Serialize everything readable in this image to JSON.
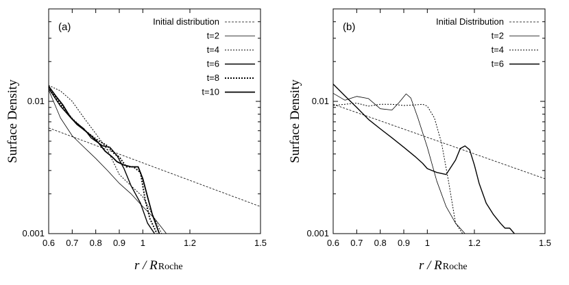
{
  "chart_data": [
    {
      "type": "line",
      "panel_label": "(a)",
      "xlabel": "r / R",
      "xlabel_subscript": "Roche",
      "ylabel": "Surface Density",
      "xscale": "linear",
      "yscale": "log",
      "xlim": [
        0.6,
        1.5
      ],
      "ylim": [
        0.001,
        0.05
      ],
      "x_ticks": [
        "0.6",
        "0.7",
        "0.8",
        "0.9",
        "1",
        "1.2",
        "1.5"
      ],
      "x_tick_values": [
        0.6,
        0.7,
        0.8,
        0.9,
        1.0,
        1.2,
        1.5
      ],
      "y_ticks": [
        "0.001",
        "0.01"
      ],
      "y_tick_values": [
        0.001,
        0.01
      ],
      "legend_position": "top-right",
      "series": [
        {
          "name": "Initial distribution",
          "style": "dashed-thin",
          "x": [
            0.6,
            1.5
          ],
          "y": [
            0.0063,
            0.0016
          ]
        },
        {
          "name": "t=2",
          "style": "solid-thin",
          "x": [
            0.6,
            0.65,
            0.7,
            0.75,
            0.8,
            0.85,
            0.9,
            0.95,
            1.0,
            1.05,
            1.1
          ],
          "y": [
            0.0122,
            0.0075,
            0.0055,
            0.0045,
            0.0037,
            0.003,
            0.0024,
            0.002,
            0.0016,
            0.0013,
            0.001
          ]
        },
        {
          "name": "t=4",
          "style": "dotted-thin",
          "x": [
            0.6,
            0.65,
            0.7,
            0.75,
            0.8,
            0.85,
            0.9,
            0.95,
            1.0,
            1.05,
            1.08
          ],
          "y": [
            0.0132,
            0.012,
            0.01,
            0.0075,
            0.0057,
            0.0043,
            0.0028,
            0.0023,
            0.0019,
            0.0013,
            0.001
          ]
        },
        {
          "name": "t=6",
          "style": "solid-medium",
          "x": [
            0.6,
            0.65,
            0.7,
            0.75,
            0.78,
            0.8,
            0.83,
            0.86,
            0.89,
            0.92,
            0.95,
            0.99,
            1.02,
            1.05
          ],
          "y": [
            0.0125,
            0.0092,
            0.0073,
            0.0062,
            0.0053,
            0.005,
            0.0046,
            0.0045,
            0.0039,
            0.0031,
            0.0023,
            0.0017,
            0.0012,
            0.001
          ]
        },
        {
          "name": "t=8",
          "style": "dotted-thick",
          "x": [
            0.6,
            0.65,
            0.7,
            0.75,
            0.8,
            0.85,
            0.88,
            0.9,
            0.93,
            0.96,
            0.99,
            1.01,
            1.03,
            1.06
          ],
          "y": [
            0.0128,
            0.0095,
            0.0074,
            0.0061,
            0.0052,
            0.0046,
            0.004,
            0.0038,
            0.0032,
            0.0032,
            0.0029,
            0.0018,
            0.0013,
            0.001
          ]
        },
        {
          "name": "t=10",
          "style": "solid-thick",
          "x": [
            0.6,
            0.63,
            0.66,
            0.69,
            0.72,
            0.75,
            0.78,
            0.81,
            0.84,
            0.87,
            0.89,
            0.92,
            0.95,
            0.98,
            1.0,
            1.02,
            1.04,
            1.07
          ],
          "y": [
            0.013,
            0.011,
            0.0094,
            0.0077,
            0.0067,
            0.0061,
            0.0055,
            0.0049,
            0.0042,
            0.0038,
            0.0035,
            0.0033,
            0.0032,
            0.0032,
            0.0026,
            0.0019,
            0.0014,
            0.001
          ]
        }
      ]
    },
    {
      "type": "line",
      "panel_label": "(b)",
      "xlabel": "r / R",
      "xlabel_subscript": "Roche",
      "ylabel": "Surface Density",
      "xscale": "linear",
      "yscale": "log",
      "xlim": [
        0.6,
        1.5
      ],
      "ylim": [
        0.001,
        0.05
      ],
      "x_ticks": [
        "0.6",
        "0.7",
        "0.8",
        "0.9",
        "1",
        "1.2",
        "1.5"
      ],
      "x_tick_values": [
        0.6,
        0.7,
        0.8,
        0.9,
        1.0,
        1.2,
        1.5
      ],
      "y_ticks": [
        "0.001",
        "0.01"
      ],
      "y_tick_values": [
        0.001,
        0.01
      ],
      "legend_position": "top-right",
      "series": [
        {
          "name": "Initial Distribution",
          "style": "dashed-thin",
          "x": [
            0.6,
            1.5
          ],
          "y": [
            0.0095,
            0.0026
          ]
        },
        {
          "name": "t=2",
          "style": "solid-thin",
          "x": [
            0.6,
            0.65,
            0.7,
            0.75,
            0.8,
            0.85,
            0.88,
            0.91,
            0.93,
            0.96,
            1.0,
            1.04,
            1.08,
            1.12,
            1.16,
            1.19
          ],
          "y": [
            0.0115,
            0.0102,
            0.0109,
            0.0105,
            0.0088,
            0.0086,
            0.0098,
            0.0114,
            0.0106,
            0.0075,
            0.0045,
            0.0025,
            0.0016,
            0.0012,
            0.001,
            0.001
          ]
        },
        {
          "name": "t=4",
          "style": "dotted-thin",
          "x": [
            0.6,
            0.65,
            0.7,
            0.75,
            0.8,
            0.85,
            0.9,
            0.95,
            0.98,
            1.0,
            1.03,
            1.06,
            1.09,
            1.12,
            1.15
          ],
          "y": [
            0.0093,
            0.0095,
            0.0097,
            0.0092,
            0.0095,
            0.0095,
            0.0093,
            0.0094,
            0.0095,
            0.0092,
            0.0075,
            0.0049,
            0.0025,
            0.0012,
            0.001
          ]
        },
        {
          "name": "t=6",
          "style": "solid-medium",
          "x": [
            0.6,
            0.65,
            0.7,
            0.75,
            0.8,
            0.85,
            0.9,
            0.95,
            0.98,
            1.0,
            1.04,
            1.08,
            1.12,
            1.14,
            1.16,
            1.18,
            1.2,
            1.22,
            1.25,
            1.28,
            1.31,
            1.33,
            1.35,
            1.37
          ],
          "y": [
            0.0135,
            0.011,
            0.009,
            0.0073,
            0.0062,
            0.0053,
            0.0045,
            0.0038,
            0.0034,
            0.0031,
            0.0029,
            0.0028,
            0.0036,
            0.0044,
            0.0046,
            0.0043,
            0.0033,
            0.0024,
            0.0017,
            0.0014,
            0.0012,
            0.0011,
            0.0011,
            0.001
          ]
        }
      ]
    }
  ]
}
